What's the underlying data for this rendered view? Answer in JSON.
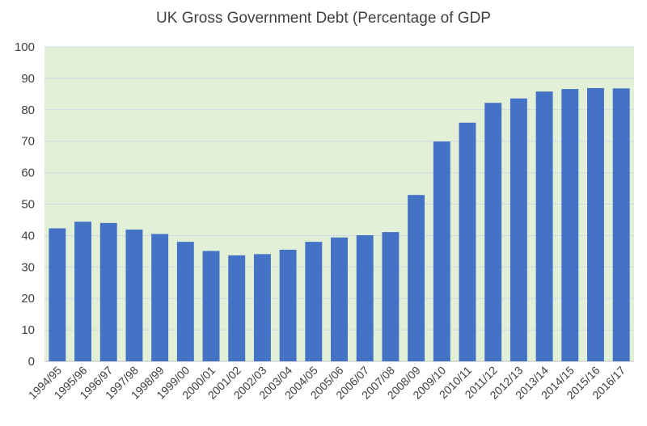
{
  "chart_data": {
    "type": "bar",
    "title": "UK Gross Government Debt (Percentage of GDP",
    "xlabel": "",
    "ylabel": "",
    "ylim": [
      0,
      100
    ],
    "yticks": [
      "0",
      "10",
      "20",
      "30",
      "40",
      "50",
      "60",
      "70",
      "80",
      "90",
      "100"
    ],
    "grid": true,
    "legend": "none",
    "categories": [
      "1994/95",
      "1995/96",
      "1996/97",
      "1997/98",
      "1998/99",
      "1999/00",
      "2000/01",
      "2001/02",
      "2002/03",
      "2003/04",
      "2004/05",
      "2005/06",
      "2006/07",
      "2007/08",
      "2008/09",
      "2009/10",
      "2010/11",
      "2011/12",
      "2012/13",
      "2013/14",
      "2014/15",
      "2015/16",
      "2016/17"
    ],
    "values": [
      42.3,
      44.4,
      44.0,
      41.9,
      40.5,
      38.0,
      35.1,
      33.7,
      34.1,
      35.5,
      38.0,
      39.4,
      40.1,
      41.1,
      52.9,
      69.9,
      75.9,
      82.2,
      83.6,
      85.8,
      86.6,
      86.9,
      86.8
    ],
    "colors": {
      "bar": "#4472c4",
      "plot_background": "#e3f0d8",
      "grid": "#cfd8e3",
      "text": "#404040"
    }
  }
}
